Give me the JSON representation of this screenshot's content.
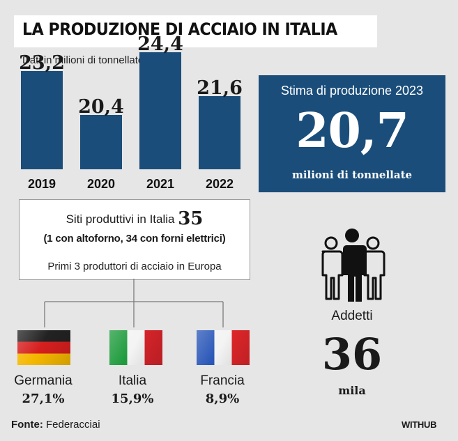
{
  "title": "LA PRODUZIONE DI ACCIAIO IN ITALIA",
  "subtitle": "Dati in milioni di tonnellate",
  "chart_data": {
    "type": "bar",
    "title": "LA PRODUZIONE DI ACCIAIO IN ITALIA",
    "subtitle": "Dati in milioni di tonnellate",
    "categories": [
      "2019",
      "2020",
      "2021",
      "2022"
    ],
    "values": [
      23.2,
      20.4,
      24.4,
      21.6
    ],
    "value_labels": [
      "23,2",
      "20,4",
      "24,4",
      "21,6"
    ],
    "xlabel": "",
    "ylabel": "",
    "grid": false,
    "legend": "none",
    "bar_color": "#1a4d7a"
  },
  "estimate": {
    "label": "Stima di produzione 2023",
    "value": "20,7",
    "unit": "milioni di tonnellate",
    "background": "#1a4d7a"
  },
  "sites": {
    "label": "Siti produttivi in Italia",
    "count": "35",
    "detail": "(1 con altoforno, 34 con forni elettrici)",
    "top_label": "Primi 3 produttori di acciaio in Europa"
  },
  "producers": [
    {
      "country": "Germania",
      "share": "27,1%",
      "flag": "germany-flag"
    },
    {
      "country": "Italia",
      "share": "15,9%",
      "flag": "italy-flag"
    },
    {
      "country": "Francia",
      "share": "8,9%",
      "flag": "france-flag"
    }
  ],
  "employees": {
    "icon": "people-group-icon",
    "label": "Addetti",
    "value": "36",
    "unit": "mila"
  },
  "source": {
    "label": "Fonte:",
    "value": "Federacciai"
  },
  "brand": "WITHUB"
}
